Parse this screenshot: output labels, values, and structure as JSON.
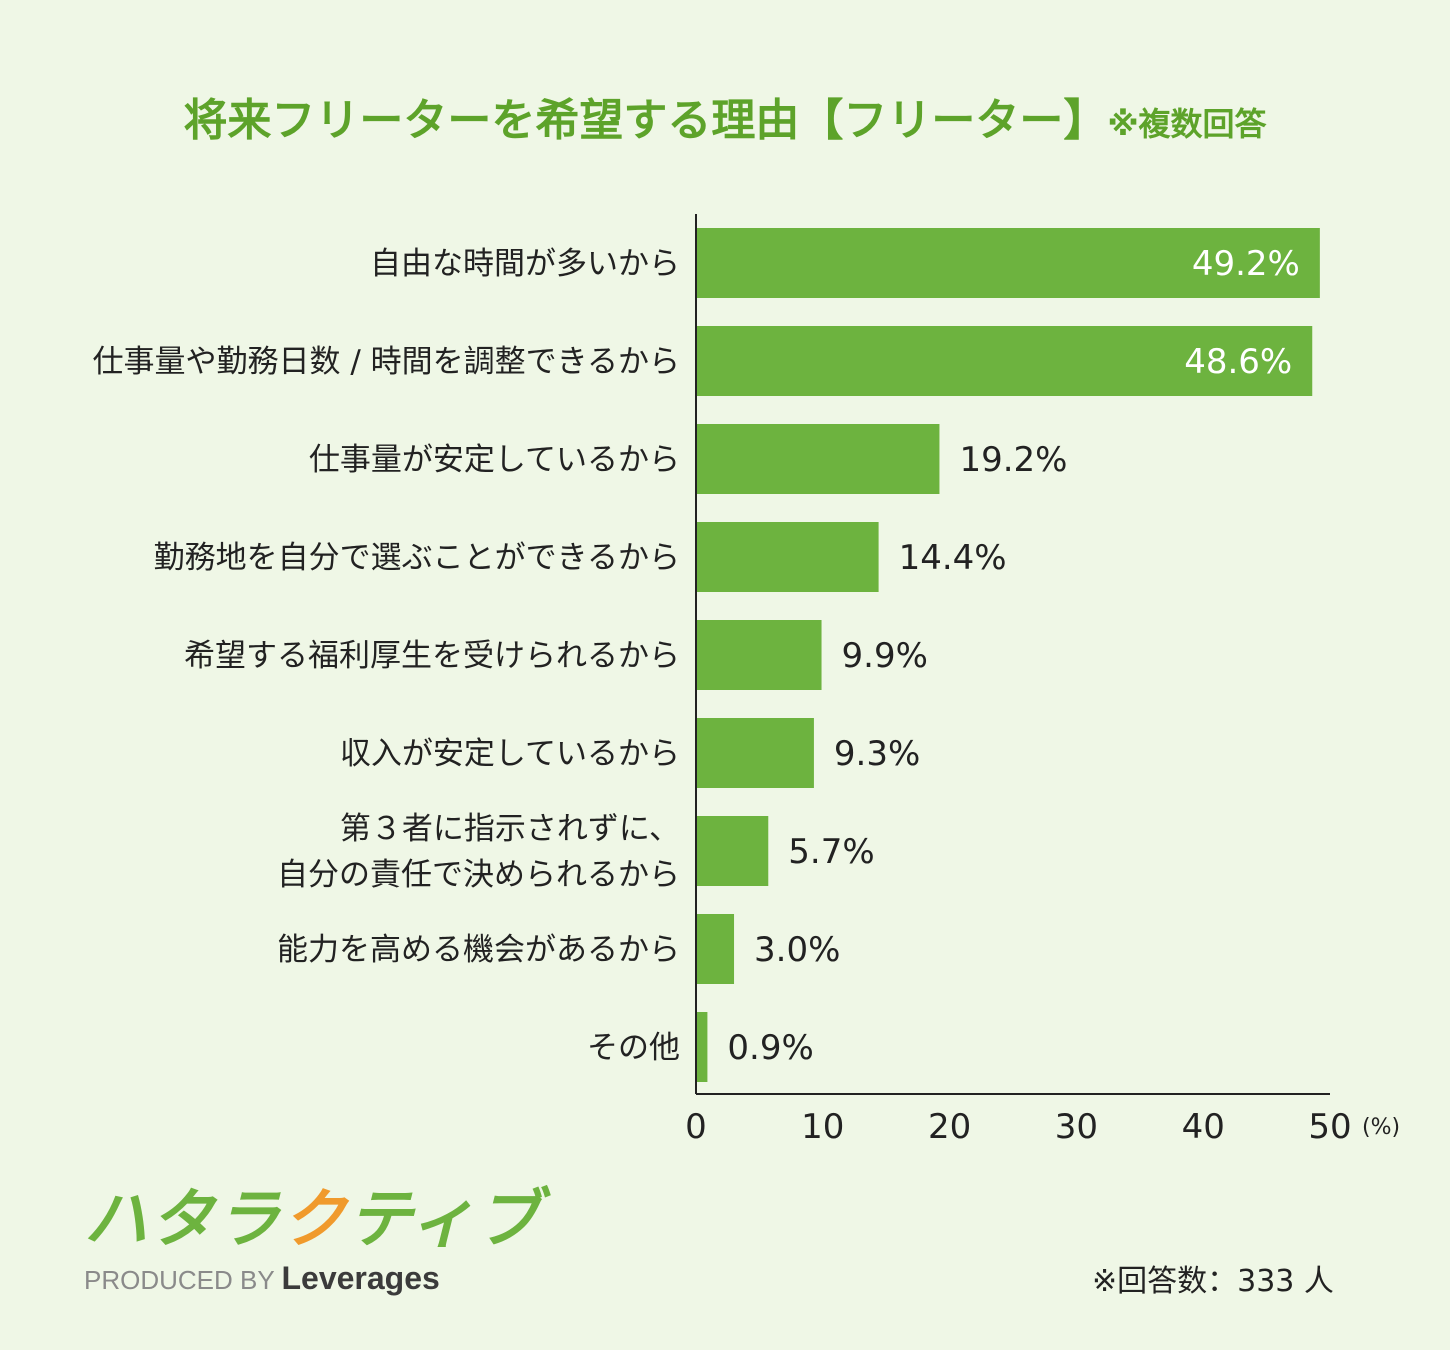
{
  "title": {
    "main": "将来フリーターを希望する理由【フリーター】",
    "note": "※複数回答"
  },
  "chart_data": {
    "type": "bar",
    "orientation": "horizontal",
    "categories": [
      "自由な時間が多いから",
      "仕事量や勤務日数 / 時間を調整できるから",
      "仕事量が安定しているから",
      "勤務地を自分で選ぶことができるから",
      "希望する福利厚生を受けられるから",
      "収入が安定しているから",
      "第３者に指示されずに、\n自分の責任で決められるから",
      "能力を高める機会があるから",
      "その他"
    ],
    "values": [
      49.2,
      48.6,
      19.2,
      14.4,
      9.9,
      9.3,
      5.7,
      3.0,
      0.9
    ],
    "value_labels": [
      "49.2%",
      "48.6%",
      "19.2%",
      "14.4%",
      "9.9%",
      "9.3%",
      "5.7%",
      "3.0%",
      "0.9%"
    ],
    "xlim": [
      0,
      50
    ],
    "xticks": [
      "0",
      "10",
      "20",
      "30",
      "40",
      "50"
    ],
    "xunit": "(%)",
    "grid": false,
    "bar_color": "#6db33f"
  },
  "footer": {
    "logo_text_green": "ハタラ",
    "logo_text_orange": "ク",
    "logo_text_green2": "ティブ",
    "produced_by": "PRODUCED BY",
    "brand": "Leverages",
    "respondents": "※回答数：333 人"
  }
}
